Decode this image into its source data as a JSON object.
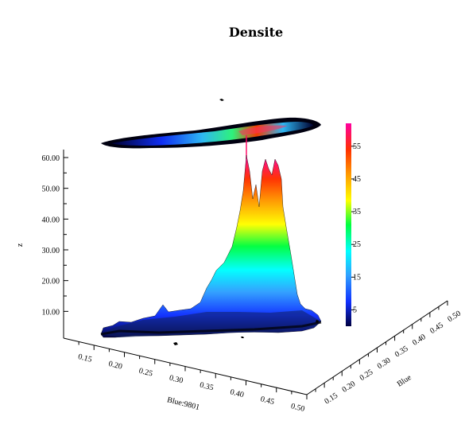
{
  "chart_data": {
    "type": "surface3d",
    "title": "Densite",
    "xlabel": "Blue:9801",
    "ylabel": "Blue",
    "zlabel": "z",
    "x_ticks": [
      "0.15",
      "0.20",
      "0.25",
      "0.30",
      "0.35",
      "0.40",
      "0.45",
      "0.50"
    ],
    "y_ticks": [
      "0.15",
      "0.20",
      "0.25",
      "0.30",
      "0.35",
      "0.40",
      "0.45",
      "0.50"
    ],
    "z_ticks": [
      "10.00",
      "20.00",
      "30.00",
      "40.00",
      "50.00",
      "60.00"
    ],
    "z_range": [
      0,
      62
    ],
    "colorbar_ticks": [
      "5",
      "15",
      "25",
      "35",
      "45",
      "55"
    ],
    "colorbar_range": [
      0,
      62
    ],
    "colormap": [
      "#000040",
      "#1030ff",
      "#30a0ff",
      "#00ffff",
      "#00ff40",
      "#ffff00",
      "#ff9900",
      "#ff3000",
      "#ff00a0"
    ],
    "projection_on_top": true
  }
}
